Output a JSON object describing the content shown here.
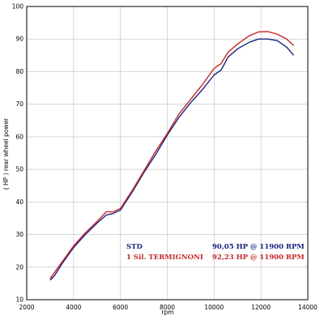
{
  "chart_data": {
    "type": "line",
    "title": "",
    "xlabel": "rpm",
    "ylabel": "( HP ) rear wheel power",
    "xlim": [
      2000,
      14000
    ],
    "ylim": [
      10,
      100
    ],
    "xticks": [
      "2000",
      "4000",
      "6000",
      "8000",
      "10000",
      "12000",
      "14000"
    ],
    "yticks": [
      "10",
      "20",
      "30",
      "40",
      "50",
      "60",
      "70",
      "80",
      "90",
      "100"
    ],
    "grid": true,
    "legend_position": "bottom-right",
    "series": [
      {
        "name": "STD",
        "summary": "90,05 HP @ 11900 RPM",
        "color": "#1a237e",
        "x": [
          3000,
          3200,
          3500,
          4000,
          4500,
          5000,
          5400,
          5700,
          6000,
          6500,
          7000,
          7500,
          8000,
          8500,
          9000,
          9500,
          10000,
          10300,
          10600,
          11000,
          11500,
          11900,
          12300,
          12700,
          13100,
          13400
        ],
        "y": [
          16,
          17.5,
          21,
          26,
          30,
          33.5,
          36,
          36.5,
          37.5,
          43,
          49,
          54.5,
          60.5,
          66,
          70.5,
          74.5,
          79,
          80.5,
          84.5,
          87,
          89,
          90,
          90,
          89.5,
          87.5,
          85
        ]
      },
      {
        "name": "1 Sil. TERMIGNONI",
        "summary": "92,23 HP @ 11900 RPM",
        "color": "#c62828",
        "x": [
          3000,
          3200,
          3500,
          4000,
          4500,
          5000,
          5400,
          5700,
          6000,
          6500,
          7000,
          7500,
          8000,
          8500,
          9000,
          9500,
          10000,
          10300,
          10600,
          11000,
          11500,
          11900,
          12300,
          12700,
          13100,
          13400
        ],
        "y": [
          16.5,
          18.5,
          21.5,
          26.5,
          30.5,
          34,
          37,
          37,
          38,
          43.5,
          49.5,
          55.5,
          61,
          67,
          71.5,
          76,
          81,
          82.5,
          86,
          88.5,
          91,
          92.2,
          92.3,
          91.5,
          90,
          88
        ]
      }
    ]
  }
}
